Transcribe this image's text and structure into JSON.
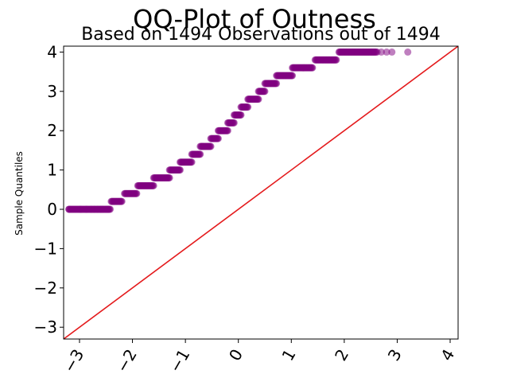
{
  "chart_data": {
    "type": "scatter",
    "title": "QQ-Plot of Outness",
    "subtitle": "Based on 1494 Observations out of 1494",
    "xlabel": "",
    "ylabel": "Sample Quantiles",
    "xlim": [
      -3.3,
      4.15
    ],
    "ylim": [
      -3.3,
      4.15
    ],
    "grid": false,
    "x_ticks": [
      -3,
      -2,
      -1,
      0,
      1,
      2,
      3,
      4
    ],
    "y_ticks": [
      -3,
      -2,
      -1,
      0,
      1,
      2,
      3,
      4
    ],
    "x_tick_labels": [
      "−3",
      "−2",
      "−1",
      "0",
      "1",
      "2",
      "3",
      "4"
    ],
    "y_tick_labels": [
      "−3",
      "−2",
      "−1",
      "0",
      "1",
      "2",
      "3",
      "4"
    ],
    "point_color": "#800080",
    "line_color": "#e41a1c",
    "reference_line": {
      "slope": 1,
      "intercept": 0
    },
    "steps": [
      {
        "y": 0.0,
        "x_start": -3.2,
        "x_end": -2.42
      },
      {
        "y": 0.2,
        "x_start": -2.4,
        "x_end": -2.2
      },
      {
        "y": 0.4,
        "x_start": -2.15,
        "x_end": -1.92
      },
      {
        "y": 0.6,
        "x_start": -1.9,
        "x_end": -1.6
      },
      {
        "y": 0.8,
        "x_start": -1.6,
        "x_end": -1.3
      },
      {
        "y": 1.0,
        "x_start": -1.3,
        "x_end": -1.1
      },
      {
        "y": 1.2,
        "x_start": -1.1,
        "x_end": -0.88
      },
      {
        "y": 1.4,
        "x_start": -0.88,
        "x_end": -0.72
      },
      {
        "y": 1.6,
        "x_start": -0.72,
        "x_end": -0.52
      },
      {
        "y": 1.8,
        "x_start": -0.52,
        "x_end": -0.38
      },
      {
        "y": 2.0,
        "x_start": -0.38,
        "x_end": -0.2
      },
      {
        "y": 2.2,
        "x_start": -0.2,
        "x_end": -0.08
      },
      {
        "y": 2.4,
        "x_start": -0.08,
        "x_end": 0.05
      },
      {
        "y": 2.6,
        "x_start": 0.05,
        "x_end": 0.18
      },
      {
        "y": 2.8,
        "x_start": 0.18,
        "x_end": 0.38
      },
      {
        "y": 3.0,
        "x_start": 0.38,
        "x_end": 0.5
      },
      {
        "y": 3.2,
        "x_start": 0.5,
        "x_end": 0.72
      },
      {
        "y": 3.4,
        "x_start": 0.72,
        "x_end": 1.02
      },
      {
        "y": 3.6,
        "x_start": 1.02,
        "x_end": 1.4
      },
      {
        "y": 3.8,
        "x_start": 1.45,
        "x_end": 1.85
      },
      {
        "y": 4.0,
        "x_start": 1.9,
        "x_end": 2.6
      }
    ],
    "tail_points": [
      [
        -3.2,
        0.0
      ],
      [
        -2.98,
        0.0
      ],
      [
        -2.87,
        0.0
      ],
      [
        -2.78,
        0.0
      ],
      [
        -2.72,
        0.0
      ],
      [
        -2.66,
        0.0
      ],
      [
        -2.6,
        0.0
      ],
      [
        -2.55,
        0.0
      ],
      [
        -2.5,
        0.0
      ],
      [
        -2.46,
        0.0
      ],
      [
        2.62,
        4.0
      ],
      [
        2.7,
        4.0
      ],
      [
        2.8,
        4.0
      ],
      [
        2.9,
        4.0
      ],
      [
        3.2,
        4.0
      ]
    ]
  }
}
